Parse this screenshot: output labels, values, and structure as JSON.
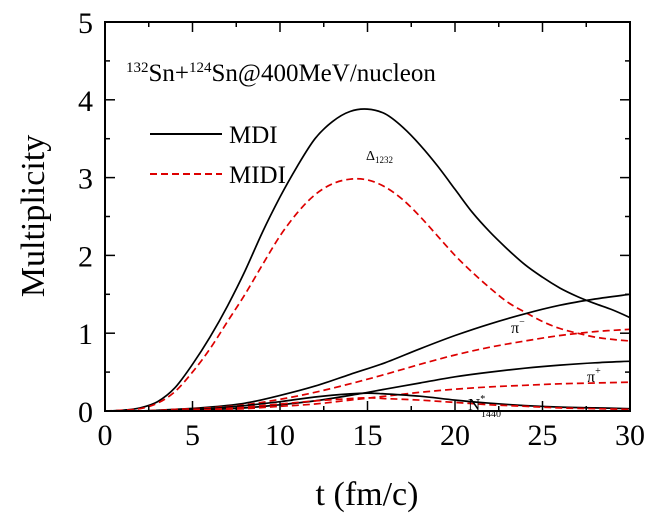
{
  "chart_data": {
    "type": "line",
    "title": "",
    "annotation_title": {
      "m1": "132",
      "t1": "Sn+",
      "m2": "124",
      "t2": "Sn@400MeV/nucleon"
    },
    "xlabel": "t (fm/c)",
    "ylabel": "Multiplicity",
    "xlim": [
      0,
      30
    ],
    "ylim": [
      0,
      5
    ],
    "xticks": [
      "0",
      "5",
      "10",
      "15",
      "20",
      "25",
      "30"
    ],
    "yticks": [
      "0",
      "1",
      "2",
      "3",
      "4",
      "5"
    ],
    "grid": false,
    "legend": {
      "placement": "upper-left",
      "entries": [
        {
          "label": "MDI",
          "color": "#000000",
          "dash": "solid"
        },
        {
          "label": "MIDI",
          "color": "#dd0000",
          "dash": "dashed"
        }
      ]
    },
    "curve_labels": {
      "delta": {
        "base": "Δ",
        "sub": "1232"
      },
      "pim": {
        "base": "π",
        "sup": "−"
      },
      "pip": {
        "base": "π",
        "sup": "+"
      },
      "nstar": {
        "base": "N",
        "sup": "*",
        "sub": "1440"
      }
    },
    "series": [
      {
        "name": "MDI Δ1232",
        "color": "#000000",
        "dash": "solid",
        "x": [
          0,
          1,
          2,
          3,
          4,
          5,
          6,
          7,
          8,
          9,
          10,
          11,
          12,
          13,
          14,
          15,
          16,
          17,
          18,
          19,
          20,
          21,
          22,
          23,
          24,
          25,
          26,
          27,
          28,
          29,
          30
        ],
        "y": [
          0,
          0.01,
          0.04,
          0.12,
          0.3,
          0.6,
          0.95,
          1.35,
          1.8,
          2.3,
          2.75,
          3.15,
          3.5,
          3.72,
          3.85,
          3.88,
          3.82,
          3.65,
          3.42,
          3.15,
          2.85,
          2.55,
          2.3,
          2.08,
          1.88,
          1.72,
          1.58,
          1.47,
          1.38,
          1.3,
          1.2
        ]
      },
      {
        "name": "MIDI Δ1232",
        "color": "#dd0000",
        "dash": "dashed",
        "x": [
          0,
          1,
          2,
          3,
          4,
          5,
          6,
          7,
          8,
          9,
          10,
          11,
          12,
          13,
          14,
          15,
          16,
          17,
          18,
          19,
          20,
          21,
          22,
          23,
          24,
          25,
          26,
          27,
          28,
          29,
          30
        ],
        "y": [
          0,
          0.01,
          0.03,
          0.1,
          0.25,
          0.5,
          0.8,
          1.15,
          1.5,
          1.88,
          2.25,
          2.55,
          2.78,
          2.92,
          2.98,
          2.97,
          2.88,
          2.72,
          2.5,
          2.25,
          2.0,
          1.78,
          1.58,
          1.4,
          1.27,
          1.15,
          1.06,
          1.0,
          0.95,
          0.92,
          0.9
        ]
      },
      {
        "name": "MDI π−",
        "color": "#000000",
        "dash": "solid",
        "x": [
          0,
          2,
          4,
          6,
          8,
          10,
          12,
          14,
          16,
          18,
          20,
          22,
          24,
          26,
          28,
          30
        ],
        "y": [
          0,
          0.0,
          0.02,
          0.05,
          0.1,
          0.2,
          0.32,
          0.47,
          0.62,
          0.8,
          0.97,
          1.12,
          1.25,
          1.36,
          1.44,
          1.5
        ]
      },
      {
        "name": "MIDI π−",
        "color": "#dd0000",
        "dash": "dashed",
        "x": [
          0,
          2,
          4,
          6,
          8,
          10,
          12,
          14,
          16,
          18,
          20,
          22,
          24,
          26,
          28,
          30
        ],
        "y": [
          0,
          0.0,
          0.02,
          0.04,
          0.08,
          0.15,
          0.24,
          0.35,
          0.47,
          0.6,
          0.72,
          0.82,
          0.9,
          0.97,
          1.02,
          1.05
        ]
      },
      {
        "name": "MDI π+",
        "color": "#000000",
        "dash": "solid",
        "x": [
          0,
          2,
          4,
          6,
          8,
          10,
          12,
          14,
          16,
          18,
          20,
          22,
          24,
          26,
          28,
          30
        ],
        "y": [
          0,
          0.0,
          0.01,
          0.02,
          0.04,
          0.08,
          0.13,
          0.2,
          0.28,
          0.36,
          0.44,
          0.5,
          0.55,
          0.59,
          0.62,
          0.64
        ]
      },
      {
        "name": "MIDI π+",
        "color": "#dd0000",
        "dash": "dashed",
        "x": [
          0,
          2,
          4,
          6,
          8,
          10,
          12,
          14,
          16,
          18,
          20,
          22,
          24,
          26,
          28,
          30
        ],
        "y": [
          0,
          0.0,
          0.01,
          0.02,
          0.03,
          0.06,
          0.09,
          0.14,
          0.19,
          0.24,
          0.28,
          0.31,
          0.33,
          0.35,
          0.36,
          0.37
        ]
      },
      {
        "name": "MDI N*1440",
        "color": "#000000",
        "dash": "solid",
        "x": [
          0,
          2,
          4,
          6,
          8,
          10,
          12,
          14,
          15,
          16,
          18,
          20,
          22,
          24,
          26,
          28,
          30
        ],
        "y": [
          0,
          0.0,
          0.01,
          0.03,
          0.07,
          0.12,
          0.18,
          0.22,
          0.23,
          0.22,
          0.19,
          0.14,
          0.1,
          0.07,
          0.05,
          0.04,
          0.03
        ]
      },
      {
        "name": "MIDI N*1440",
        "color": "#dd0000",
        "dash": "dashed",
        "x": [
          0,
          2,
          4,
          6,
          8,
          10,
          12,
          14,
          15,
          16,
          18,
          20,
          22,
          24,
          26,
          28,
          30
        ],
        "y": [
          0,
          0.0,
          0.01,
          0.02,
          0.05,
          0.09,
          0.13,
          0.16,
          0.17,
          0.16,
          0.14,
          0.11,
          0.08,
          0.06,
          0.04,
          0.03,
          0.02
        ]
      }
    ]
  }
}
